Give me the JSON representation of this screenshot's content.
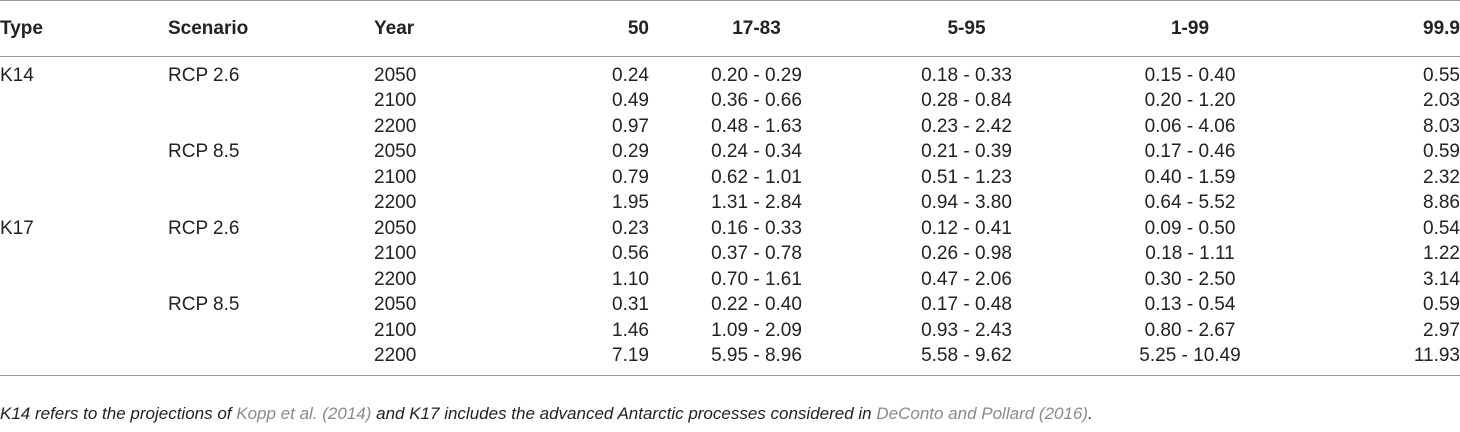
{
  "headers": {
    "type": "Type",
    "scenario": "Scenario",
    "year": "Year",
    "p50": "50",
    "p1783": "17-83",
    "p595": "5-95",
    "p199": "1-99",
    "p999": "99.9"
  },
  "rows": [
    {
      "type": "K14",
      "scenario": "RCP 2.6",
      "year": "2050",
      "p50": "0.24",
      "p1783": "0.20 - 0.29",
      "p595": "0.18 - 0.33",
      "p199": "0.15 - 0.40",
      "p999": "0.55"
    },
    {
      "type": "",
      "scenario": "",
      "year": "2100",
      "p50": "0.49",
      "p1783": "0.36 - 0.66",
      "p595": "0.28 - 0.84",
      "p199": "0.20 - 1.20",
      "p999": "2.03"
    },
    {
      "type": "",
      "scenario": "",
      "year": "2200",
      "p50": "0.97",
      "p1783": "0.48 - 1.63",
      "p595": "0.23 - 2.42",
      "p199": "0.06 - 4.06",
      "p999": "8.03"
    },
    {
      "type": "",
      "scenario": "RCP 8.5",
      "year": "2050",
      "p50": "0.29",
      "p1783": "0.24 - 0.34",
      "p595": "0.21 - 0.39",
      "p199": "0.17 - 0.46",
      "p999": "0.59"
    },
    {
      "type": "",
      "scenario": "",
      "year": "2100",
      "p50": "0.79",
      "p1783": "0.62 - 1.01",
      "p595": "0.51 - 1.23",
      "p199": "0.40 - 1.59",
      "p999": "2.32"
    },
    {
      "type": "",
      "scenario": "",
      "year": "2200",
      "p50": "1.95",
      "p1783": "1.31 - 2.84",
      "p595": "0.94 - 3.80",
      "p199": "0.64 - 5.52",
      "p999": "8.86"
    },
    {
      "type": "K17",
      "scenario": "RCP 2.6",
      "year": "2050",
      "p50": "0.23",
      "p1783": "0.16 - 0.33",
      "p595": "0.12 - 0.41",
      "p199": "0.09 - 0.50",
      "p999": "0.54"
    },
    {
      "type": "",
      "scenario": "",
      "year": "2100",
      "p50": "0.56",
      "p1783": "0.37 - 0.78",
      "p595": "0.26 - 0.98",
      "p199": "0.18 - 1.11",
      "p999": "1.22"
    },
    {
      "type": "",
      "scenario": "",
      "year": "2200",
      "p50": "1.10",
      "p1783": "0.70 - 1.61",
      "p595": "0.47 - 2.06",
      "p199": "0.30 - 2.50",
      "p999": "3.14"
    },
    {
      "type": "",
      "scenario": "RCP 8.5",
      "year": "2050",
      "p50": "0.31",
      "p1783": "0.22 - 0.40",
      "p595": "0.17 - 0.48",
      "p199": "0.13 - 0.54",
      "p999": "0.59"
    },
    {
      "type": "",
      "scenario": "",
      "year": "2100",
      "p50": "1.46",
      "p1783": "1.09 - 2.09",
      "p595": "0.93 - 2.43",
      "p199": "0.80 - 2.67",
      "p999": "2.97"
    },
    {
      "type": "",
      "scenario": "",
      "year": "2200",
      "p50": "7.19",
      "p1783": "5.95 - 8.96",
      "p595": "5.58 - 9.62",
      "p199": "5.25 - 10.49",
      "p999": "11.93"
    }
  ],
  "footnote": {
    "text_a": "K14 refers to the projections of ",
    "ref_a": "Kopp et al. (2014)",
    "text_b": " and K17 includes the advanced Antarctic processes considered in ",
    "ref_b": "DeConto and Pollard (2016)",
    "text_c": "."
  },
  "colors": {
    "text": "#222222",
    "reference_link": "#8a8a8a",
    "rule": "#9a9a9a"
  }
}
